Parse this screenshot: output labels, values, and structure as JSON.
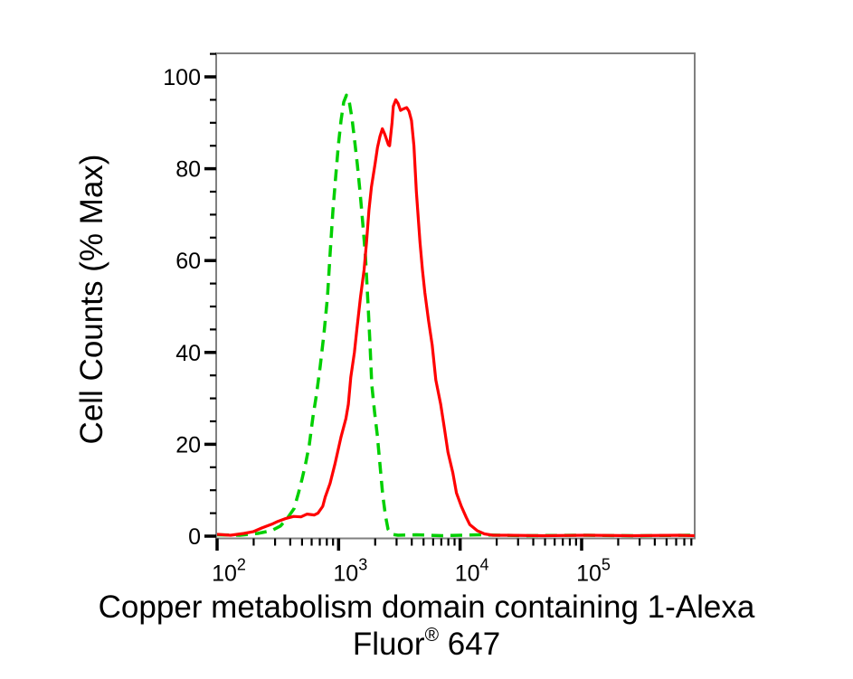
{
  "figure": {
    "y_axis_label": "Cell Counts (% Max)",
    "title_line1": "Copper metabolism domain containing 1-Alexa",
    "title_line2_word": "Fluor",
    "title_line2_sup": "®",
    "title_line2_suffix": " 647"
  },
  "chart_data": {
    "type": "line",
    "chart_kind": "flow-cytometry-histogram",
    "title": "Copper metabolism domain containing 1-Alexa Fluor® 647",
    "xlabel": "Copper metabolism domain containing 1-Alexa Fluor® 647",
    "ylabel": "Cell Counts (% Max)",
    "x_scale": "log",
    "xlim": [
      100,
      850000
    ],
    "ylim": [
      0,
      100
    ],
    "x_tick_values": [
      100,
      1000,
      10000,
      100000
    ],
    "x_tick_exponents": [
      2,
      3,
      4,
      5
    ],
    "y_tick_values": [
      0,
      20,
      40,
      60,
      80,
      100
    ],
    "y_minor_step": 5,
    "grid": false,
    "legend": "none",
    "frame_color": "#808080",
    "tick_color": "#000000",
    "series": [
      {
        "name": "green-dashed",
        "color": "#00cf00",
        "style": "dashed",
        "peak_x": 1161,
        "peak_y": 96,
        "points": [
          [
            100,
            0.3
          ],
          [
            154,
            0.2
          ],
          [
            216,
            0.6
          ],
          [
            280,
            1.2
          ],
          [
            332,
            2.2
          ],
          [
            381,
            4
          ],
          [
            430,
            6
          ],
          [
            468,
            9.4
          ],
          [
            501,
            12.5
          ],
          [
            537,
            16
          ],
          [
            575,
            20
          ],
          [
            615,
            26
          ],
          [
            659,
            31
          ],
          [
            706,
            37
          ],
          [
            757,
            44
          ],
          [
            809,
            52
          ],
          [
            853,
            62
          ],
          [
            898,
            71
          ],
          [
            944,
            78
          ],
          [
            995,
            85
          ],
          [
            1047,
            90.5
          ],
          [
            1102,
            94.5
          ],
          [
            1161,
            96
          ],
          [
            1222,
            94.7
          ],
          [
            1288,
            91
          ],
          [
            1355,
            86
          ],
          [
            1426,
            81
          ],
          [
            1500,
            75
          ],
          [
            1582,
            68
          ],
          [
            1664,
            61
          ],
          [
            1750,
            50
          ],
          [
            1811,
            42
          ],
          [
            1875,
            33
          ],
          [
            1977,
            27
          ],
          [
            2080,
            22
          ],
          [
            2188,
            15.7
          ],
          [
            2307,
            9
          ],
          [
            2427,
            4.5
          ],
          [
            2553,
            1.5
          ],
          [
            2735,
            0.4
          ],
          [
            3083,
            0.2
          ],
          [
            4345,
            0.3
          ],
          [
            7261,
            0.1
          ],
          [
            14421,
            0.3
          ],
          [
            33963,
            0.1
          ],
          [
            95060,
            0.2
          ],
          [
            266073,
            0.1
          ],
          [
            850000,
            0.2
          ]
        ]
      },
      {
        "name": "red-solid",
        "color": "#ff0000",
        "style": "solid",
        "peak_x": 2951,
        "peak_y": 95,
        "points": [
          [
            100,
            0.4
          ],
          [
            129,
            0.2
          ],
          [
            166,
            0.6
          ],
          [
            200,
            1.0
          ],
          [
            234,
            1.8
          ],
          [
            282,
            2.6
          ],
          [
            316,
            3.2
          ],
          [
            363,
            3.8
          ],
          [
            427,
            4.3
          ],
          [
            490,
            4.2
          ],
          [
            550,
            4.8
          ],
          [
            631,
            4.6
          ],
          [
            676,
            5.0
          ],
          [
            741,
            6.5
          ],
          [
            776,
            8.5
          ],
          [
            851,
            11.5
          ],
          [
            933,
            15.7
          ],
          [
            1047,
            21.6
          ],
          [
            1148,
            25.6
          ],
          [
            1202,
            28.7
          ],
          [
            1259,
            34.6
          ],
          [
            1349,
            40
          ],
          [
            1413,
            45
          ],
          [
            1514,
            52
          ],
          [
            1622,
            58
          ],
          [
            1698,
            64
          ],
          [
            1778,
            71
          ],
          [
            1862,
            76
          ],
          [
            1995,
            81
          ],
          [
            2089,
            84.6
          ],
          [
            2188,
            87
          ],
          [
            2291,
            88.7
          ],
          [
            2399,
            87.5
          ],
          [
            2570,
            85.2
          ],
          [
            2630,
            85
          ],
          [
            2754,
            90
          ],
          [
            2818,
            93.6
          ],
          [
            2951,
            95
          ],
          [
            3090,
            94.2
          ],
          [
            3236,
            92.7
          ],
          [
            3388,
            93
          ],
          [
            3631,
            93.3
          ],
          [
            3802,
            92.5
          ],
          [
            3981,
            90.5
          ],
          [
            4169,
            85
          ],
          [
            4365,
            75
          ],
          [
            4677,
            64
          ],
          [
            4898,
            58
          ],
          [
            5129,
            53
          ],
          [
            5495,
            47
          ],
          [
            5888,
            41.6
          ],
          [
            6310,
            34
          ],
          [
            6918,
            28.7
          ],
          [
            7413,
            23.6
          ],
          [
            7943,
            18.3
          ],
          [
            8710,
            13.8
          ],
          [
            9333,
            9.4
          ],
          [
            10233,
            6.5
          ],
          [
            11220,
            4.1
          ],
          [
            12023,
            2.5
          ],
          [
            13804,
            1.2
          ],
          [
            15849,
            0.5
          ],
          [
            18621,
            0.2
          ],
          [
            23988,
            0.2
          ],
          [
            47863,
            0.1
          ],
          [
            112202,
            0.2
          ],
          [
            263027,
            0.1
          ],
          [
            630957,
            0.2
          ],
          [
            850000,
            0.1
          ]
        ]
      }
    ]
  }
}
